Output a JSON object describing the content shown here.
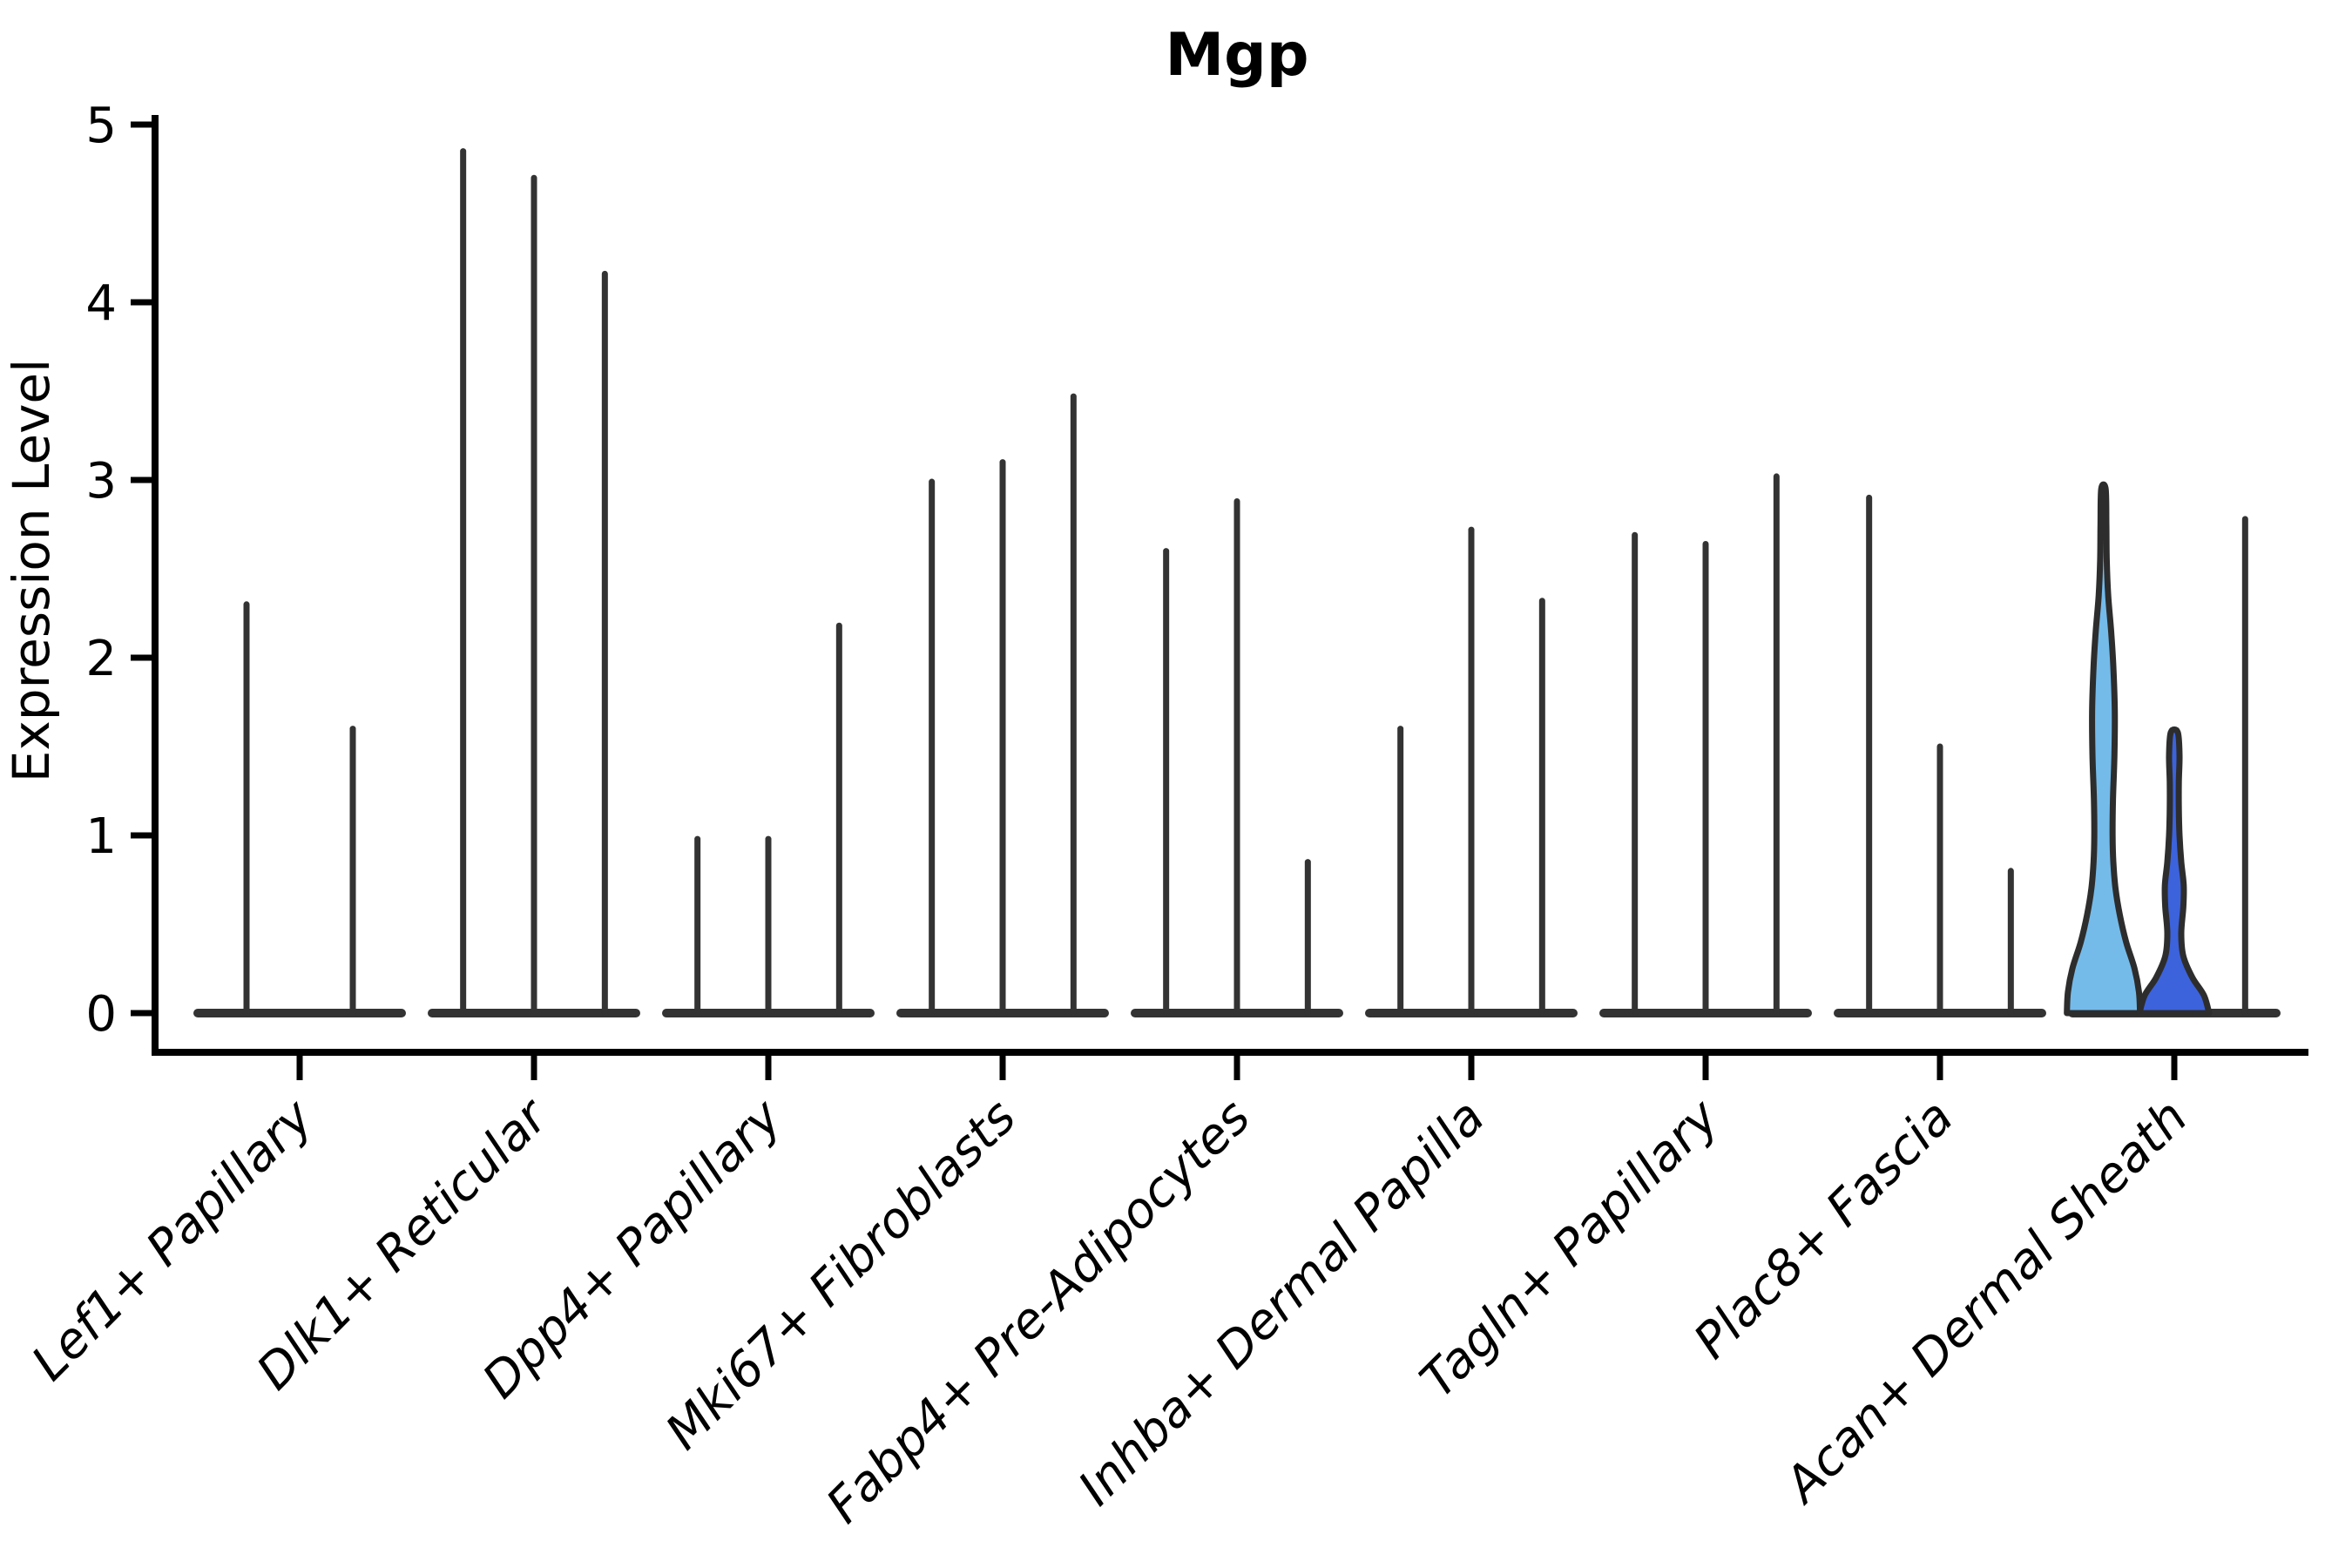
{
  "figure": {
    "title": "Mgp",
    "y_axis": {
      "label": "Expression Level",
      "tick_labels": [
        "0",
        "1",
        "2",
        "3",
        "4",
        "5"
      ]
    },
    "x_axis": {
      "labels": [
        "Lef1+ Papillary",
        "Dlk1+ Reticular",
        "Dpp4+ Papillary",
        "Mki67+ Fibroblasts",
        "Fabp4+ Pre-Adipocytes",
        "Inhba+ Dermal Papilla",
        "Tagln+ Papillary",
        "Plac8+ Fascia",
        "Acan+ Dermal Sheath"
      ]
    }
  },
  "chart_data": {
    "type": "violin",
    "title": "Mgp",
    "xlabel": "",
    "ylabel": "Expression Level",
    "ylim": [
      0,
      5
    ],
    "yticks": [
      0,
      1,
      2,
      3,
      4,
      5
    ],
    "grid": false,
    "legend_position": "none",
    "x_tick_label_style": "italic, rotated 45 degrees, right-anchored",
    "colors": {
      "violin_outline": "#2d2d2d",
      "spike_color": "#333333",
      "axis_color": "#000000",
      "highlight_light_blue": "#74BBEA",
      "highlight_royal_blue": "#3C63DC"
    },
    "description": "Violin plot of Mgp expression per cell type. Most distributions collapse to a wide flat base at 0 with a thin spike up to the max expression value. The last category (Acan+ Dermal Sheath) contains two filled density violins (light blue and royal blue) plus one thin spike violin.",
    "categories": [
      {
        "label": "Lef1+ Papillary",
        "violins": [
          {
            "kind": "spike",
            "max": 2.3
          },
          {
            "kind": "spike",
            "max": 1.6
          }
        ]
      },
      {
        "label": "Dlk1+ Reticular",
        "violins": [
          {
            "kind": "spike",
            "max": 4.85
          },
          {
            "kind": "spike",
            "max": 4.7
          },
          {
            "kind": "spike",
            "max": 4.16
          }
        ]
      },
      {
        "label": "Dpp4+ Papillary",
        "violins": [
          {
            "kind": "spike",
            "max": 0.98
          },
          {
            "kind": "spike",
            "max": 0.98
          },
          {
            "kind": "spike",
            "max": 2.18
          }
        ]
      },
      {
        "label": "Mki67+ Fibroblasts",
        "violins": [
          {
            "kind": "spike",
            "max": 2.99
          },
          {
            "kind": "spike",
            "max": 3.1
          },
          {
            "kind": "spike",
            "max": 3.47
          }
        ]
      },
      {
        "label": "Fabp4+ Pre-Adipocytes",
        "violins": [
          {
            "kind": "spike",
            "max": 2.6
          },
          {
            "kind": "spike",
            "max": 2.88
          },
          {
            "kind": "spike",
            "max": 0.85
          }
        ]
      },
      {
        "label": "Inhba+ Dermal Papilla",
        "violins": [
          {
            "kind": "spike",
            "max": 1.6
          },
          {
            "kind": "spike",
            "max": 2.72
          },
          {
            "kind": "spike",
            "max": 2.32
          }
        ]
      },
      {
        "label": "Tagln+ Papillary",
        "violins": [
          {
            "kind": "spike",
            "max": 2.69
          },
          {
            "kind": "spike",
            "max": 2.64
          },
          {
            "kind": "spike",
            "max": 3.02
          }
        ]
      },
      {
        "label": "Plac8+ Fascia",
        "violins": [
          {
            "kind": "spike",
            "max": 2.9
          },
          {
            "kind": "spike",
            "max": 1.5
          },
          {
            "kind": "spike",
            "max": 0.8
          }
        ]
      },
      {
        "label": "Acan+ Dermal Sheath",
        "violins": [
          {
            "kind": "density",
            "max": 2.95,
            "fill": "#74BBEA",
            "max_halfwidth": 42,
            "profile": [
              [
                0,
                1
              ],
              [
                0.12,
                0.97
              ],
              [
                0.25,
                0.85
              ],
              [
                0.4,
                0.62
              ],
              [
                0.55,
                0.45
              ],
              [
                0.7,
                0.33
              ],
              [
                0.85,
                0.27
              ],
              [
                1.0,
                0.25
              ],
              [
                1.2,
                0.26
              ],
              [
                1.45,
                0.3
              ],
              [
                1.7,
                0.31
              ],
              [
                1.95,
                0.27
              ],
              [
                2.15,
                0.21
              ],
              [
                2.35,
                0.13
              ],
              [
                2.55,
                0.09
              ],
              [
                2.75,
                0.08
              ],
              [
                2.95,
                0.06
              ]
            ]
          },
          {
            "kind": "density",
            "max": 1.58,
            "fill": "#3C63DC",
            "max_halfwidth": 40,
            "profile": [
              [
                0,
                1
              ],
              [
                0.1,
                0.85
              ],
              [
                0.2,
                0.52
              ],
              [
                0.32,
                0.26
              ],
              [
                0.45,
                0.2
              ],
              [
                0.6,
                0.26
              ],
              [
                0.72,
                0.27
              ],
              [
                0.85,
                0.2
              ],
              [
                1.0,
                0.15
              ],
              [
                1.15,
                0.13
              ],
              [
                1.3,
                0.13
              ],
              [
                1.45,
                0.15
              ],
              [
                1.58,
                0.1
              ]
            ]
          },
          {
            "kind": "spike",
            "max": 2.78
          }
        ]
      }
    ]
  }
}
